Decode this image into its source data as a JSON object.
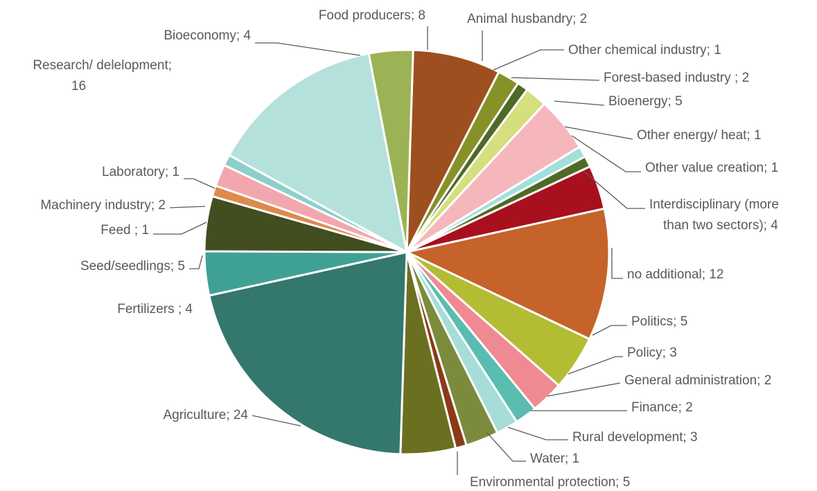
{
  "chart_data": {
    "type": "pie",
    "start_angle_deg": 1.8,
    "direction": "clockwise",
    "slices": [
      {
        "label": "Food producers; 8",
        "category": "Food producers",
        "value": 8,
        "color": "#9e4f1f"
      },
      {
        "label": "Animal husbandry; 2",
        "category": "Animal husbandry",
        "value": 2,
        "color": "#869227"
      },
      {
        "label": "Other chemical industry; 1",
        "category": "Other chemical industry",
        "value": 1,
        "color": "#4e6a26"
      },
      {
        "label": "Forest-based industry ; 2",
        "category": "Forest-based industry",
        "value": 2,
        "color": "#d5df7e"
      },
      {
        "label": "Bioenergy; 5",
        "category": "Bioenergy",
        "value": 5,
        "color": "#f6b7bc"
      },
      {
        "label": "Other energy/ heat; 1",
        "category": "Other energy/ heat",
        "value": 1,
        "color": "#a3dfdb"
      },
      {
        "label": "Other value creation; 1",
        "category": "Other value creation",
        "value": 1,
        "color": "#4e6a26"
      },
      {
        "label": "Interdisciplinary (more than two sectors); 4",
        "category": "Interdisciplinary (more than two sectors)",
        "value": 4,
        "color": "#a8101e"
      },
      {
        "label": "no additional; 12",
        "category": "no additional",
        "value": 12,
        "color": "#c5632a"
      },
      {
        "label": "Politics; 5",
        "category": "Politics",
        "value": 5,
        "color": "#b3bc33"
      },
      {
        "label": "Policy; 3",
        "category": "Policy",
        "value": 3,
        "color": "#ef8a92"
      },
      {
        "label": "General administration; 2",
        "category": "General administration",
        "value": 2,
        "color": "#5abcb1"
      },
      {
        "label": "Finance; 2",
        "category": "Finance",
        "value": 2,
        "color": "#a6ddd8"
      },
      {
        "label": "Rural development; 3",
        "category": "Rural development",
        "value": 3,
        "color": "#7a8c3c"
      },
      {
        "label": "Water; 1",
        "category": "Water",
        "value": 1,
        "color": "#8b3a17"
      },
      {
        "label": "Environmental protection; 5",
        "category": "Environmental protection",
        "value": 5,
        "color": "#6b7021"
      },
      {
        "label": "Agriculture; 24",
        "category": "Agriculture",
        "value": 24,
        "color": "#34776d"
      },
      {
        "label": "Fertilizers ; 4",
        "category": "Fertilizers",
        "value": 4,
        "color": "#3fa194"
      },
      {
        "label": "Seed/seedlings; 5",
        "category": "Seed/seedlings",
        "value": 5,
        "color": "#424d20"
      },
      {
        "label": "Feed ; 1",
        "category": "Feed",
        "value": 1,
        "color": "#dd8a4c"
      },
      {
        "label": "Machinery industry; 2",
        "category": "Machinery industry",
        "value": 2,
        "color": "#f2a7ae"
      },
      {
        "label": "Laboratory; 1",
        "category": "Laboratory",
        "value": 1,
        "color": "#8ccfca"
      },
      {
        "label": "Research/ delelopment; 16",
        "category": "Research/ delelopment",
        "value": 16,
        "color": "#b5e1dc"
      },
      {
        "label": "Bioeconomy; 4",
        "category": "Bioeconomy",
        "value": 4,
        "color": "#9bb355"
      }
    ]
  }
}
